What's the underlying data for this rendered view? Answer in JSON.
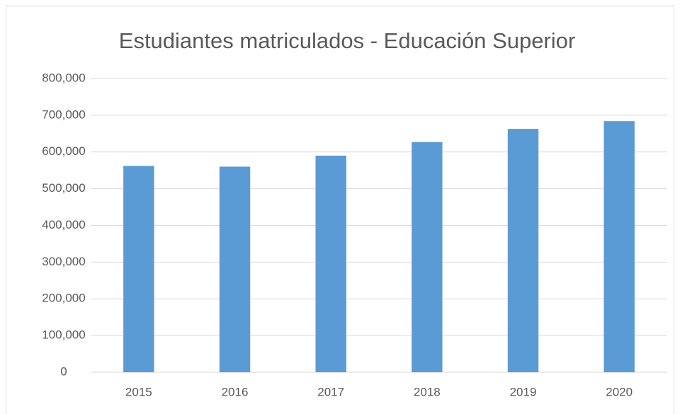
{
  "chart_data": {
    "type": "bar",
    "title": "Estudiantes matriculados - Educación Superior",
    "categories": [
      "2015",
      "2016",
      "2017",
      "2018",
      "2019",
      "2020"
    ],
    "values": [
      562000,
      560000,
      590000,
      627000,
      663000,
      684000
    ],
    "color": "#5b9bd5",
    "ylim": [
      0,
      800000
    ],
    "yticks": [
      0,
      {
        "value": 100000,
        "label": "100,000"
      },
      {
        "value": 200000,
        "label": "200,000"
      },
      {
        "value": 300000,
        "label": "300,000"
      },
      {
        "value": 400000,
        "label": "400,000"
      },
      {
        "value": 500000,
        "label": "500,000"
      },
      {
        "value": 600000,
        "label": "600,000"
      },
      {
        "value": 700000,
        "label": "700,000"
      },
      {
        "value": 800000,
        "label": "800,000"
      }
    ],
    "grid": true
  }
}
